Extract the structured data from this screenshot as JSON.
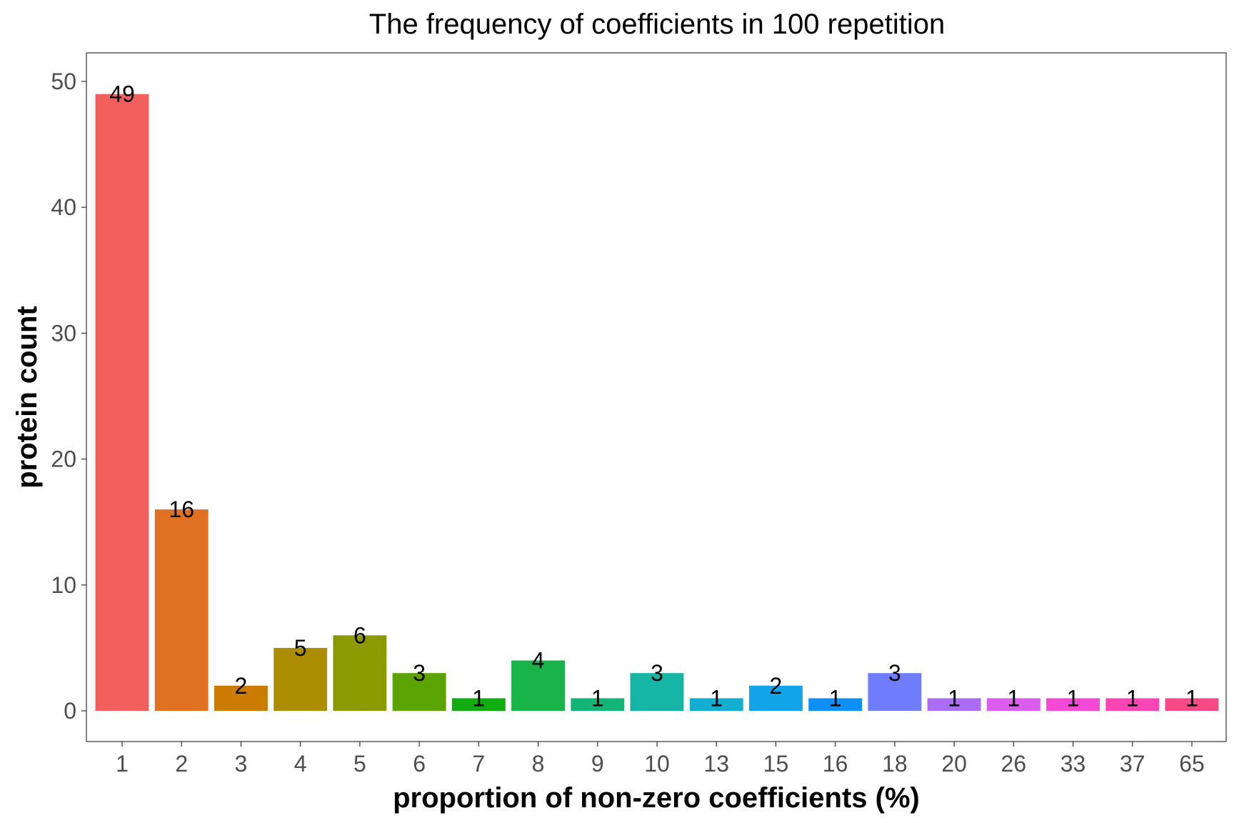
{
  "chart_data": {
    "type": "bar",
    "title": "The  frequency of coefficients in 100 repetition",
    "xlabel": "proportion of non-zero coefficients (%)",
    "ylabel": "protein count",
    "categories": [
      "1",
      "2",
      "3",
      "4",
      "5",
      "6",
      "7",
      "8",
      "9",
      "10",
      "13",
      "15",
      "16",
      "18",
      "20",
      "26",
      "33",
      "37",
      "65"
    ],
    "values": [
      49,
      16,
      2,
      5,
      6,
      3,
      1,
      4,
      1,
      3,
      1,
      2,
      1,
      3,
      1,
      1,
      1,
      1,
      1
    ],
    "data_labels": [
      "49",
      "16",
      "2",
      "5",
      "6",
      "3",
      "1",
      "4",
      "1",
      "3",
      "1",
      "2",
      "1",
      "3",
      "1",
      "1",
      "1",
      "1",
      "1"
    ],
    "yticks": [
      "0",
      "10",
      "20",
      "30",
      "40",
      "50"
    ],
    "ylim": [
      0,
      50
    ],
    "grid": false,
    "legend": "none",
    "colors": [
      "#F8766D",
      "#E58700",
      "#C99800",
      "#A3A500",
      "#6BB100",
      "#00BA38",
      "#00BF7D",
      "#00C0AF",
      "#00BCD8",
      "#00B0F6",
      "#619CFF",
      "#B983FF",
      "#E76BF3",
      "#FD61D1",
      "#FF67A4"
    ],
    "bar_colors": [
      "#F2605E",
      "#E07022",
      "#CB7C00",
      "#AD8D00",
      "#8C9A00",
      "#5BA300",
      "#10AC10",
      "#18B349",
      "#13B478",
      "#17B5A6",
      "#13AECF",
      "#13A4E8",
      "#0F8FFA",
      "#6F7DFD",
      "#AB6CF6",
      "#DB5DED",
      "#F449D7",
      "#FA46B4",
      "#F64A87"
    ]
  }
}
